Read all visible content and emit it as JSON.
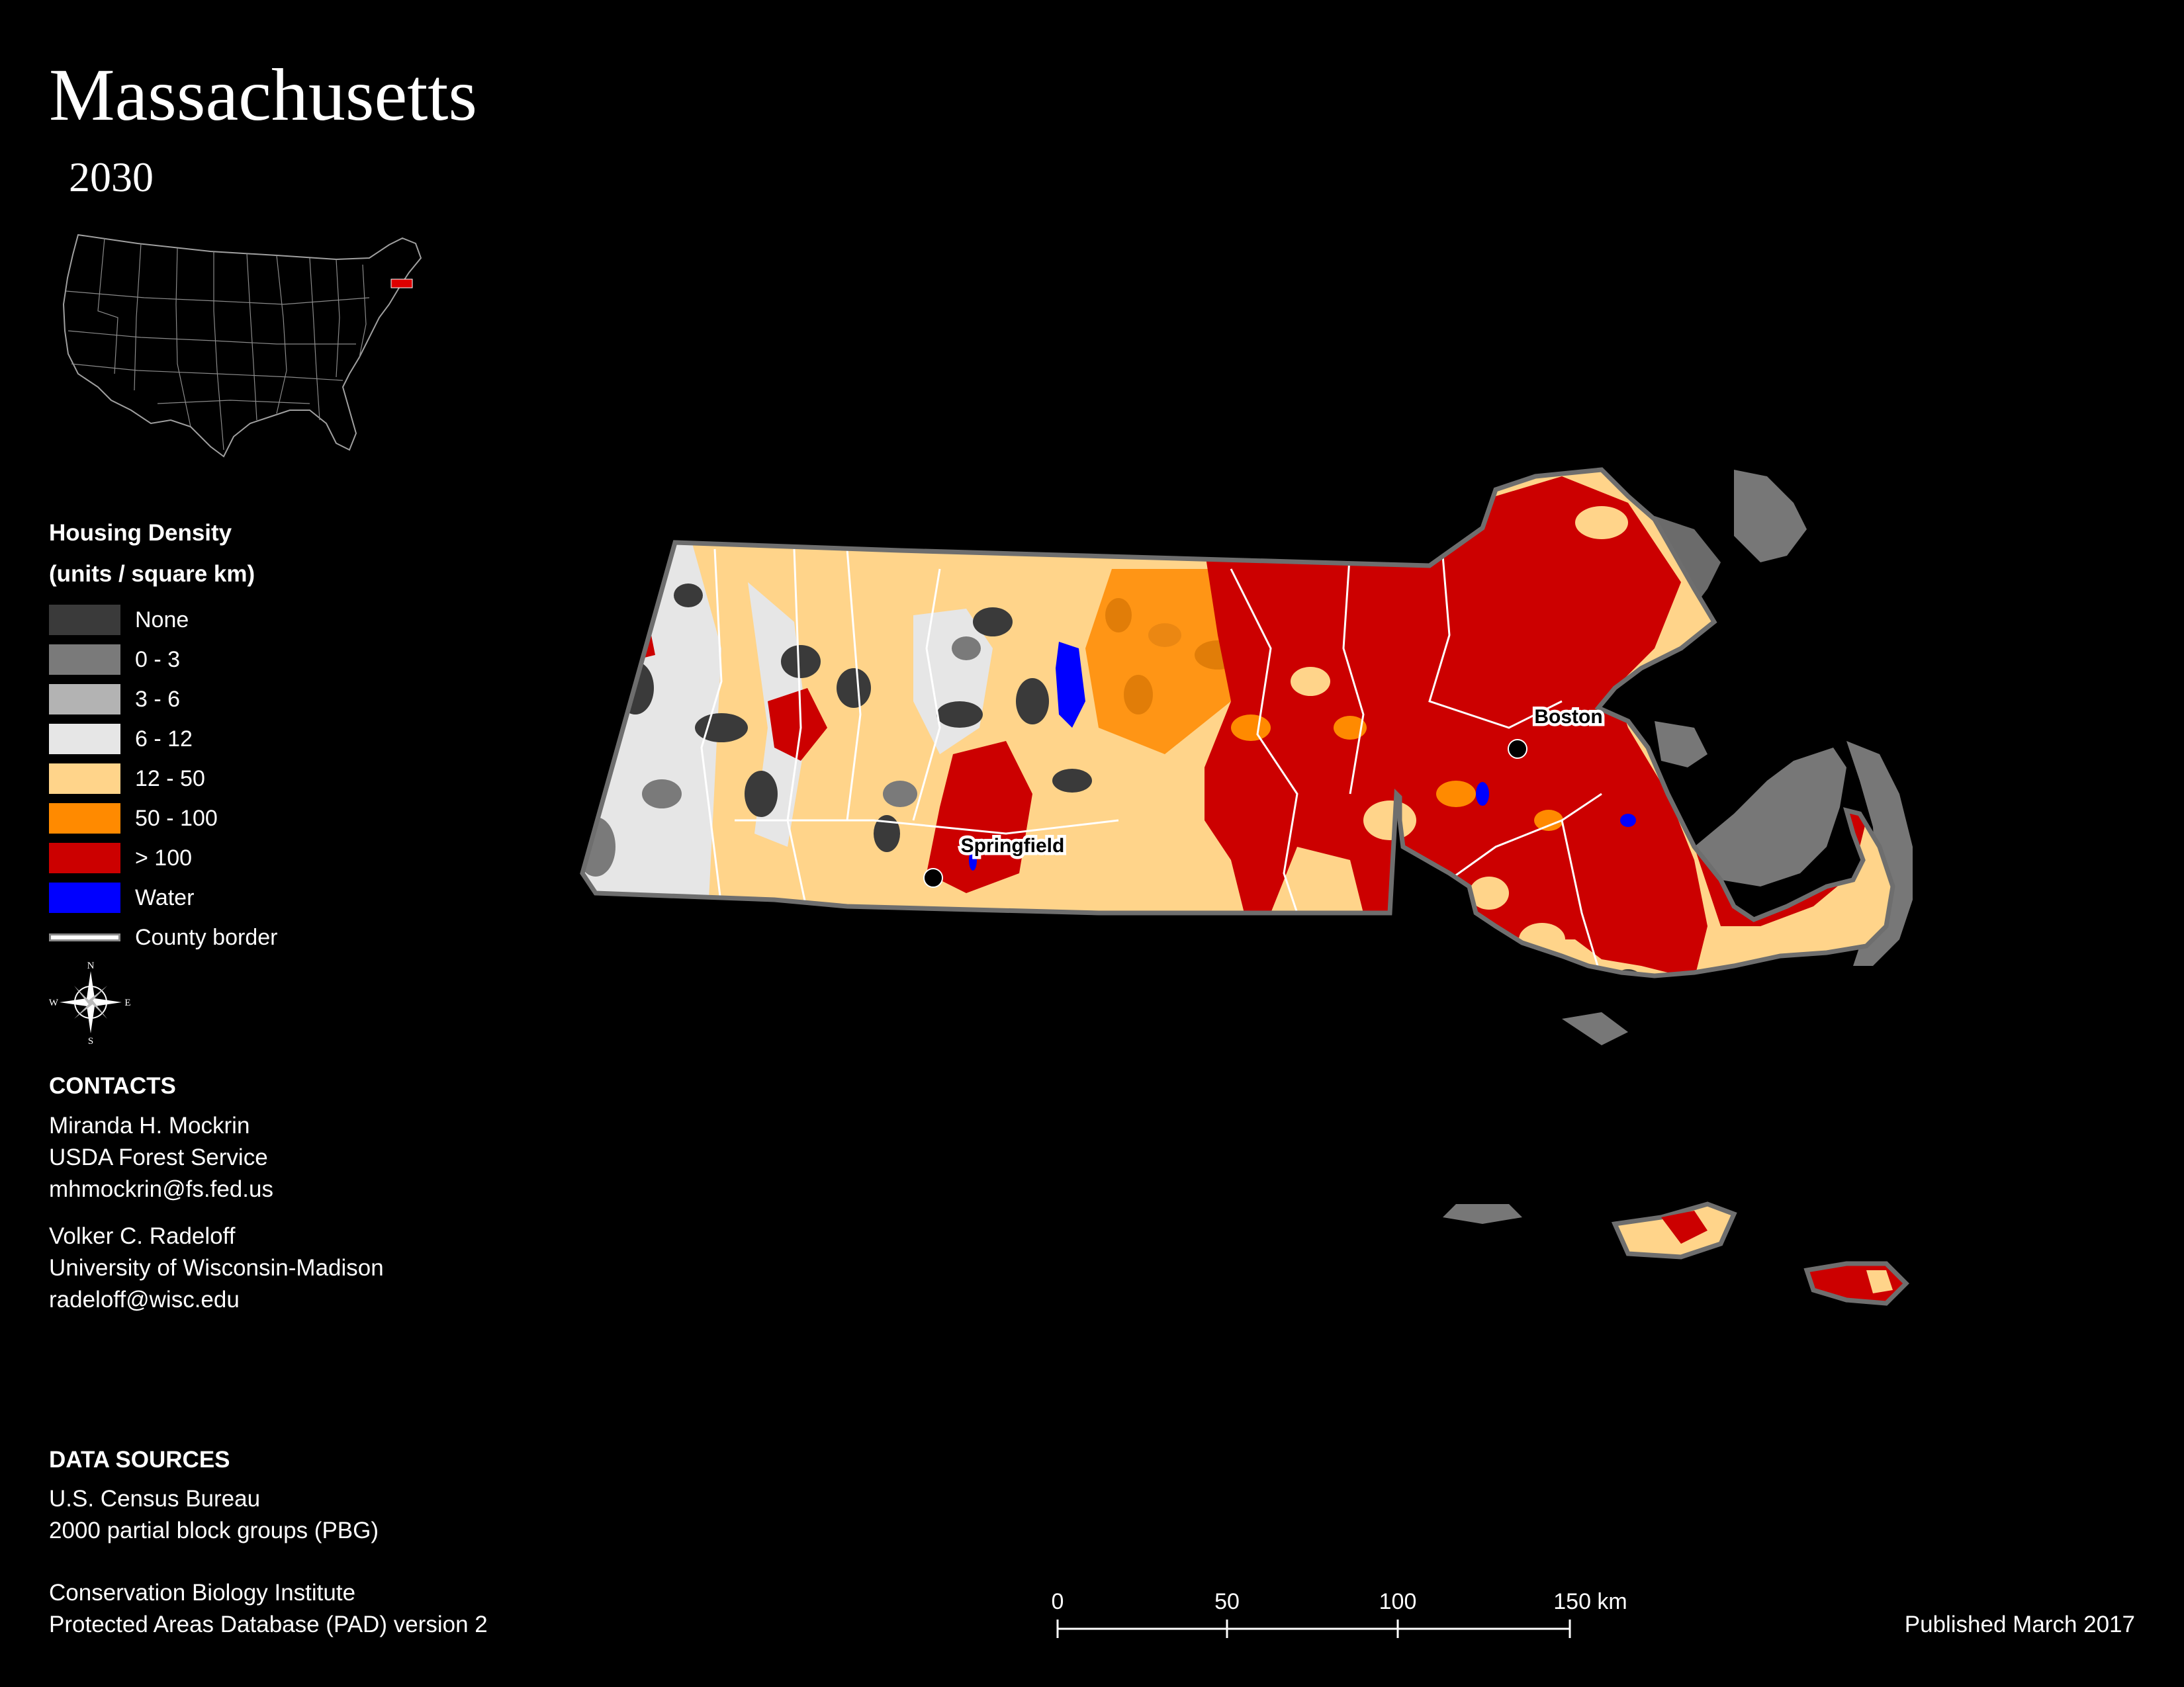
{
  "title": "Massachusetts",
  "year": "2030",
  "legend": {
    "heading_line1": "Housing Density",
    "heading_line2": "(units / square km)",
    "items": [
      {
        "label": "None",
        "color": "#3a3a3a"
      },
      {
        "label": "0 - 3",
        "color": "#7a7a7a"
      },
      {
        "label": "3 - 6",
        "color": "#b3b3b3"
      },
      {
        "label": "6 - 12",
        "color": "#e6e6e6"
      },
      {
        "label": "12 - 50",
        "color": "#ffd48a"
      },
      {
        "label": "50 - 100",
        "color": "#ff8a00"
      },
      {
        "label": "> 100",
        "color": "#cc0000"
      },
      {
        "label": "Water",
        "color": "#0000ff"
      }
    ],
    "county_border_label": "County border"
  },
  "compass": {
    "n": "N",
    "s": "S",
    "e": "E",
    "w": "W"
  },
  "contacts": {
    "heading": "CONTACTS",
    "people": [
      {
        "name": "Miranda H. Mockrin",
        "org": "USDA Forest Service",
        "email": "mhmockrin@fs.fed.us"
      },
      {
        "name": "Volker C. Radeloff",
        "org": "University of Wisconsin-Madison",
        "email": "radeloff@wisc.edu"
      }
    ]
  },
  "data_sources": {
    "heading": "DATA SOURCES",
    "lines1": [
      "U.S. Census Bureau",
      "2000 partial block groups (PBG)"
    ],
    "lines2": [
      "Conservation Biology Institute",
      "Protected Areas Database (PAD) version 2"
    ]
  },
  "cities": {
    "boston": "Boston",
    "springfield": "Springfield"
  },
  "scale_bar": {
    "ticks": [
      "0",
      "50",
      "100",
      "150 km"
    ]
  },
  "published": "Published March 2017"
}
